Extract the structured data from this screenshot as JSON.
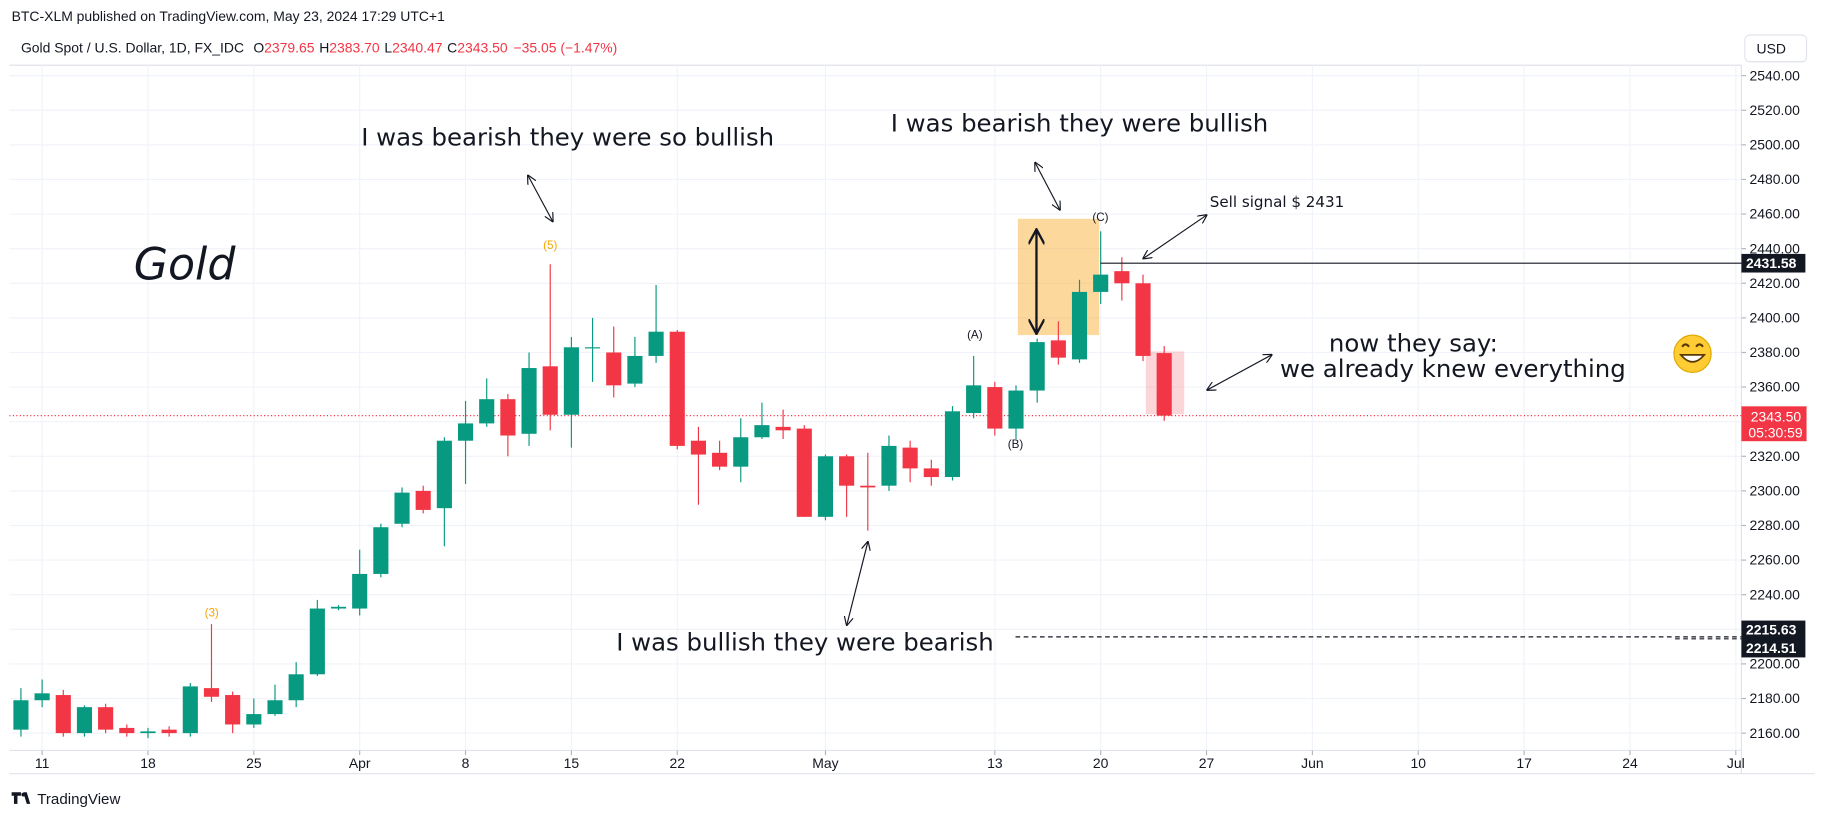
{
  "header": {
    "published": "BTC-XLM published on TradingView.com, May 23, 2024 17:29 UTC+1",
    "symbol": "Gold Spot / U.S. Dollar, 1D, FX_IDC",
    "ohlc": [
      {
        "key": "O",
        "value": "2379.65"
      },
      {
        "key": "H",
        "value": "2383.70"
      },
      {
        "key": "L",
        "value": "2340.47"
      },
      {
        "key": "C",
        "value": "2343.50"
      }
    ],
    "change": "−35.05 (−1.47%)",
    "currency": "USD",
    "brand": "TradingView"
  },
  "chart_data": {
    "type": "candlestick",
    "up_color": "#089981",
    "down_color": "#f23645",
    "open": [
      2162,
      2179,
      2182,
      2160,
      2175,
      2163,
      2160,
      2162,
      2160,
      2186,
      2182,
      2165,
      2171,
      2179,
      2194,
      2232,
      2232,
      2252,
      2281,
      2300,
      2290,
      2329,
      2339,
      2353,
      2333,
      2372,
      2344,
      2383,
      2380,
      2362,
      2378,
      2392,
      2329,
      2322,
      2314,
      2331,
      2337,
      2336,
      2285,
      2320,
      2303,
      2303,
      2325,
      2313,
      2308,
      2345,
      2360,
      2336,
      2358,
      2387,
      2376,
      2415,
      2427,
      2420,
      2379.65
    ],
    "high": [
      2186,
      2191,
      2185,
      2176,
      2177,
      2165,
      2163,
      2164,
      2189,
      2223,
      2184,
      2180,
      2188,
      2201,
      2237,
      2234,
      2266,
      2281,
      2302,
      2303,
      2331,
      2352,
      2365,
      2356,
      2380,
      2431,
      2389,
      2400,
      2395,
      2389,
      2419,
      2393,
      2337,
      2329,
      2342,
      2351,
      2347,
      2338,
      2321,
      2321,
      2322,
      2332,
      2329,
      2318,
      2349,
      2378,
      2363,
      2361,
      2388,
      2398,
      2422,
      2450,
      2435,
      2425,
      2383.7
    ],
    "low": [
      2158,
      2175,
      2158,
      2158,
      2160,
      2158,
      2157,
      2158,
      2158,
      2178,
      2160,
      2163,
      2170,
      2175,
      2193,
      2231,
      2228,
      2250,
      2279,
      2287,
      2268,
      2304,
      2337,
      2320,
      2326,
      2335,
      2325,
      2363,
      2354,
      2360,
      2374,
      2324,
      2292,
      2312,
      2305,
      2330,
      2330,
      2285,
      2283,
      2285,
      2277,
      2300,
      2305,
      2303,
      2306,
      2342,
      2332,
      2330,
      2351,
      2373,
      2374,
      2408,
      2410,
      2375,
      2340.47
    ],
    "close": [
      2179,
      2183,
      2160,
      2175,
      2162,
      2160,
      2161,
      2160,
      2187,
      2181,
      2165,
      2171,
      2179,
      2194,
      2232,
      2233,
      2252,
      2279,
      2299,
      2289,
      2329,
      2339,
      2353,
      2332,
      2371,
      2344,
      2383,
      2383,
      2361,
      2378,
      2392,
      2326,
      2321,
      2314,
      2331,
      2338,
      2335,
      2285,
      2320,
      2303,
      2302,
      2326,
      2313,
      2308,
      2346,
      2361,
      2336,
      2358,
      2386,
      2377,
      2415,
      2425,
      2420,
      2378,
      2343.5
    ],
    "xticks": [
      {
        "value": 1,
        "label": "11"
      },
      {
        "value": 6,
        "label": "18"
      },
      {
        "value": 11,
        "label": "25"
      },
      {
        "value": 16,
        "label": "Apr"
      },
      {
        "value": 21,
        "label": "8"
      },
      {
        "value": 26,
        "label": "15"
      },
      {
        "value": 31,
        "label": "22"
      },
      {
        "value": 38,
        "label": "May"
      },
      {
        "value": 46,
        "label": "13"
      },
      {
        "value": 51,
        "label": "20"
      },
      {
        "value": 56,
        "label": "27"
      },
      {
        "value": 61,
        "label": "Jun"
      },
      {
        "value": 66,
        "label": "10"
      },
      {
        "value": 71,
        "label": "17"
      },
      {
        "value": 76,
        "label": "24"
      },
      {
        "value": 81,
        "label": "Jul"
      }
    ],
    "ylim": [
      2150,
      2546
    ],
    "yticks": [
      {
        "value": 2160,
        "label": "2160.00"
      },
      {
        "value": 2180,
        "label": "2180.00"
      },
      {
        "value": 2200,
        "label": "2200.00"
      },
      {
        "value": 2220,
        "label": "2220.00"
      },
      {
        "value": 2240,
        "label": "2240.00"
      },
      {
        "value": 2260,
        "label": "2260.00"
      },
      {
        "value": 2280,
        "label": "2280.00"
      },
      {
        "value": 2300,
        "label": "2300.00"
      },
      {
        "value": 2320,
        "label": "2320.00"
      },
      {
        "value": 2340,
        "label": "2340.00"
      },
      {
        "value": 2360,
        "label": "2360.00"
      },
      {
        "value": 2380,
        "label": "2380.00"
      },
      {
        "value": 2400,
        "label": "2400.00"
      },
      {
        "value": 2420,
        "label": "2420.00"
      },
      {
        "value": 2440,
        "label": "2440.00"
      },
      {
        "value": 2460,
        "label": "2460.00"
      },
      {
        "value": 2480,
        "label": "2480.00"
      },
      {
        "value": 2500,
        "label": "2500.00"
      },
      {
        "value": 2520,
        "label": "2520.00"
      },
      {
        "value": 2540,
        "label": "2540.00"
      }
    ],
    "grid": true,
    "last_price": {
      "value": 2343.5,
      "label": "2343.50",
      "countdown": "05:30:59"
    },
    "price_lines": [
      {
        "value": 2431.58,
        "label": "2431.58"
      },
      {
        "value": 2215.63,
        "label": "2215.63"
      },
      {
        "value": 2214.51,
        "label": "2214.51"
      }
    ],
    "wave_labels": [
      "(3)",
      "(5)",
      "(A)",
      "(B)",
      "(C)"
    ],
    "annotations": [
      "Gold",
      "I was bearish they were so bullish",
      "I was bearish they were bullish",
      "Sell signal  $ 2431",
      "now they say:",
      "we already knew everything",
      "I was bullish they were bearish"
    ]
  }
}
